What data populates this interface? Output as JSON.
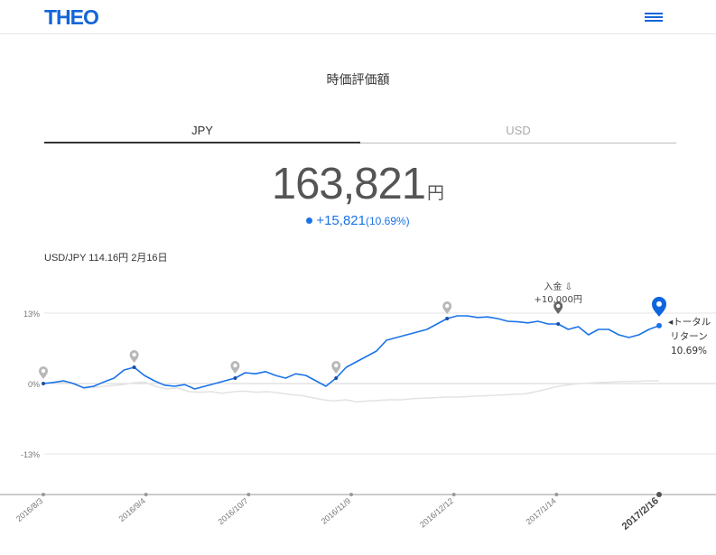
{
  "header": {
    "logo": "THEO"
  },
  "page_title": "時価評価額",
  "tabs": [
    {
      "label": "JPY",
      "active": true
    },
    {
      "label": "USD",
      "active": false
    }
  ],
  "value": {
    "amount": "163,821",
    "unit": "円"
  },
  "change": {
    "amount": "+15,821",
    "percent": "(10.69%)"
  },
  "fx_rate": "USD/JPY 114.16円 2月16日",
  "colors": {
    "brand": "#1565d8",
    "line": "#1a73e8",
    "benchmark": "#e3e3e3",
    "marker": "#b8b8b8"
  },
  "chart_data": {
    "type": "line",
    "y_ticks": [
      "13%",
      "0%",
      "-13%"
    ],
    "ylim": [
      -13,
      13
    ],
    "x_ticks": [
      "2016/8/3",
      "2016/9/4",
      "2016/10/7",
      "2016/11/9",
      "2016/12/12",
      "2017/1/14",
      "2017/2/16"
    ],
    "series": [
      {
        "values": [
          0,
          0.2,
          0.5,
          0,
          -0.8,
          -0.5,
          0.3,
          1,
          2.5,
          3,
          1.5,
          0.5,
          -0.3,
          -0.5,
          -0.2,
          -1,
          -0.5,
          0,
          0.5,
          1,
          2,
          1.8,
          2.2,
          1.5,
          1,
          1.8,
          1.5,
          0.5,
          -0.5,
          1,
          3,
          4,
          5,
          6,
          8,
          8.5,
          9,
          9.5,
          10,
          11,
          12,
          12.5,
          12.5,
          12.2,
          12.3,
          12,
          11.5,
          11.4,
          11.2,
          11.5,
          11,
          11,
          10,
          10.5,
          9,
          10,
          10,
          9,
          8.5,
          9,
          10,
          10.69
        ]
      },
      {
        "values": [
          0,
          0.1,
          0.2,
          -0.3,
          -0.8,
          -0.6,
          -0.4,
          -0.2,
          0.1,
          0.3,
          -0.5,
          -1,
          -0.8,
          -1.5,
          -1.6,
          -1.5,
          -1.8,
          -1.5,
          -1.4,
          -1.6,
          -1.5,
          -1.7,
          -2,
          -2.2,
          -2.6,
          -3,
          -3.2,
          -3,
          -3.4,
          -3.2,
          -3.1,
          -3,
          -3,
          -2.8,
          -2.7,
          -2.6,
          -2.5,
          -2.5,
          -2.4,
          -2.3,
          -2.2,
          -2.1,
          -2,
          -1.9,
          -1.5,
          -1,
          -0.5,
          -0.2,
          0,
          0.1,
          0.2,
          0.3,
          0.4,
          0.4,
          0.5,
          0.5
        ]
      }
    ],
    "markers_count": 7,
    "deposit_label": "入金",
    "deposit_amount": "+10,000円",
    "end_label": "トータル\nリターン\n10.69%"
  }
}
